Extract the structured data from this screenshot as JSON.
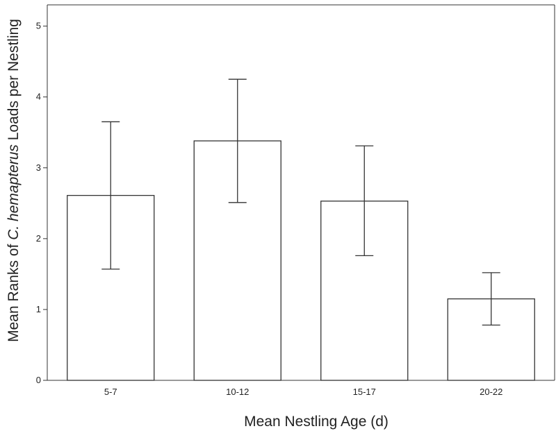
{
  "chart_data": {
    "type": "bar",
    "categories": [
      "5-7",
      "10-12",
      "15-17",
      "20-22"
    ],
    "values": [
      2.61,
      3.38,
      2.53,
      1.15
    ],
    "error_low": [
      1.57,
      2.51,
      1.76,
      0.78
    ],
    "error_high": [
      3.65,
      4.25,
      3.31,
      1.52
    ],
    "xlabel": "Mean Nestling Age (d)",
    "ylabel": {
      "before": "Mean Ranks of ",
      "italic": "C. hemapterus",
      "after": " Loads per Nestling"
    },
    "ylim": [
      0,
      5.3
    ],
    "yticks": [
      "0",
      "1",
      "2",
      "3",
      "4",
      "5"
    ],
    "grid": false,
    "legend": "none",
    "colors": {
      "bar_fill": "#ffffff",
      "bar_stroke": "#333333",
      "axis": "#333333"
    }
  }
}
